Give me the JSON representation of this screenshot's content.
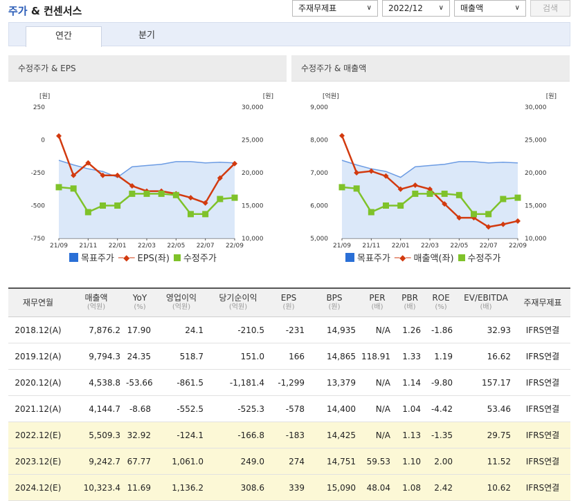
{
  "header": {
    "title_accent": "주가",
    "title_rest": " & 컨센서스"
  },
  "filters": {
    "report_type": "주재무제표",
    "period": "2022/12",
    "metric": "매출액",
    "search_label": "검색"
  },
  "tabs": [
    {
      "label": "연간",
      "active": true
    },
    {
      "label": "분기",
      "active": false
    }
  ],
  "chart_data": [
    {
      "type": "line",
      "title": "수정주가 & EPS",
      "left_unit": "[원]",
      "right_unit": "[원]",
      "x": [
        "21/09",
        "21/10",
        "21/11",
        "21/12",
        "22/01",
        "22/02",
        "22/03",
        "22/04",
        "22/05",
        "22/06",
        "22/07",
        "22/08",
        "22/09"
      ],
      "x_tick_labels": [
        "21/09",
        "21/11",
        "22/01",
        "22/03",
        "22/05",
        "22/07",
        "22/09"
      ],
      "left_ylim": [
        -750,
        250
      ],
      "left_ticks": [
        "250",
        "0",
        "-250",
        "-500",
        "-750"
      ],
      "right_ylim": [
        10000,
        30000
      ],
      "right_ticks": [
        "30,000",
        "25,000",
        "20,000",
        "15,000",
        "10,000"
      ],
      "series": [
        {
          "name": "목표주가",
          "axis": "right",
          "style": "area",
          "values": [
            21900,
            21200,
            20600,
            20200,
            19300,
            20900,
            21100,
            21300,
            21700,
            21700,
            21500,
            21600,
            21500
          ]
        },
        {
          "name": "EPS(좌)",
          "axis": "left",
          "style": "line",
          "values": [
            30,
            -270,
            -175,
            -270,
            -270,
            -350,
            -390,
            -390,
            -410,
            -440,
            -480,
            -290,
            -180
          ]
        },
        {
          "name": "수정주가",
          "axis": "right",
          "style": "line",
          "values": [
            17800,
            17600,
            14000,
            15000,
            15000,
            16800,
            16800,
            16800,
            16600,
            13700,
            13700,
            16000,
            16200
          ]
        }
      ]
    },
    {
      "type": "line",
      "title": "수정주가 & 매출액",
      "left_unit": "[억원]",
      "right_unit": "[원]",
      "x": [
        "21/09",
        "21/10",
        "21/11",
        "21/12",
        "22/01",
        "22/02",
        "22/03",
        "22/04",
        "22/05",
        "22/06",
        "22/07",
        "22/08",
        "22/09"
      ],
      "x_tick_labels": [
        "21/09",
        "21/11",
        "22/01",
        "22/03",
        "22/05",
        "22/07",
        "22/09"
      ],
      "left_ylim": [
        5000,
        9000
      ],
      "left_ticks": [
        "9,000",
        "8,000",
        "7,000",
        "6,000",
        "5,000"
      ],
      "right_ylim": [
        10000,
        30000
      ],
      "right_ticks": [
        "30,000",
        "25,000",
        "20,000",
        "15,000",
        "10,000"
      ],
      "series": [
        {
          "name": "목표주가",
          "axis": "right",
          "style": "area",
          "values": [
            21900,
            21200,
            20600,
            20200,
            19300,
            20900,
            21100,
            21300,
            21700,
            21700,
            21500,
            21600,
            21500
          ]
        },
        {
          "name": "매출액(좌)",
          "axis": "left",
          "style": "line",
          "values": [
            8130,
            7000,
            7050,
            6900,
            6500,
            6620,
            6500,
            6050,
            5630,
            5630,
            5350,
            5430,
            5530
          ]
        },
        {
          "name": "수정주가",
          "axis": "right",
          "style": "line",
          "values": [
            17800,
            17600,
            14000,
            15000,
            15000,
            16800,
            16800,
            16800,
            16600,
            13700,
            13700,
            16000,
            16200
          ]
        }
      ]
    }
  ],
  "table": {
    "headers": [
      {
        "label": "재무연월",
        "unit": ""
      },
      {
        "label": "매출액",
        "unit": "(억원)"
      },
      {
        "label": "YoY",
        "unit": "(%)"
      },
      {
        "label": "영업이익",
        "unit": "(억원)"
      },
      {
        "label": "당기순이익",
        "unit": "(억원)"
      },
      {
        "label": "EPS",
        "unit": "(원)"
      },
      {
        "label": "BPS",
        "unit": "(원)"
      },
      {
        "label": "PER",
        "unit": "(배)"
      },
      {
        "label": "PBR",
        "unit": "(배)"
      },
      {
        "label": "ROE",
        "unit": "(%)"
      },
      {
        "label": "EV/EBITDA",
        "unit": "(배)"
      },
      {
        "label": "주재무제표",
        "unit": ""
      }
    ],
    "rows": [
      {
        "estimate": false,
        "cells": [
          "2018.12(A)",
          "7,876.2",
          "17.90",
          "24.1",
          "-210.5",
          "-231",
          "14,935",
          "N/A",
          "1.26",
          "-1.86",
          "32.93",
          "IFRS연결"
        ]
      },
      {
        "estimate": false,
        "cells": [
          "2019.12(A)",
          "9,794.3",
          "24.35",
          "518.7",
          "151.0",
          "166",
          "14,865",
          "118.91",
          "1.33",
          "1.19",
          "16.62",
          "IFRS연결"
        ]
      },
      {
        "estimate": false,
        "cells": [
          "2020.12(A)",
          "4,538.8",
          "-53.66",
          "-861.5",
          "-1,181.4",
          "-1,299",
          "13,379",
          "N/A",
          "1.14",
          "-9.80",
          "157.17",
          "IFRS연결"
        ]
      },
      {
        "estimate": false,
        "cells": [
          "2021.12(A)",
          "4,144.7",
          "-8.68",
          "-552.5",
          "-525.3",
          "-578",
          "14,400",
          "N/A",
          "1.04",
          "-4.42",
          "53.46",
          "IFRS연결"
        ]
      },
      {
        "estimate": true,
        "cells": [
          "2022.12(E)",
          "5,509.3",
          "32.92",
          "-124.1",
          "-166.8",
          "-183",
          "14,425",
          "N/A",
          "1.13",
          "-1.35",
          "29.75",
          "IFRS연결"
        ]
      },
      {
        "estimate": true,
        "cells": [
          "2023.12(E)",
          "9,242.7",
          "67.77",
          "1,061.0",
          "249.0",
          "274",
          "14,751",
          "59.53",
          "1.10",
          "2.00",
          "11.52",
          "IFRS연결"
        ]
      },
      {
        "estimate": true,
        "cells": [
          "2024.12(E)",
          "10,323.4",
          "11.69",
          "1,136.2",
          "308.6",
          "339",
          "15,090",
          "48.04",
          "1.08",
          "2.42",
          "10.62",
          "IFRS연결"
        ]
      }
    ]
  },
  "colors": {
    "accent": "#2a5cb7",
    "eps_line": "#d23a0f",
    "price_line": "#7fc22a",
    "target_fill": "#cfe0f7",
    "target_line": "#6b9be3",
    "estimate_row": "#fcf8d6"
  }
}
